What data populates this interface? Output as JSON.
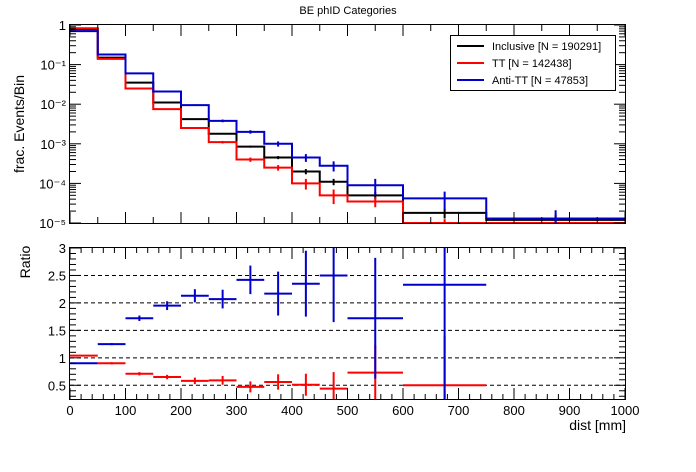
{
  "figure": {
    "title": "BE phID Categories",
    "colors": {
      "inclusive": "#000000",
      "tt": "#ff0000",
      "antitt": "#0000cc",
      "axis": "#000000"
    }
  },
  "chart_data": [
    {
      "type": "line",
      "title": "BE phID Categories",
      "xlabel": "",
      "ylabel": "frac. Events/Bin",
      "xlim": [
        0,
        1000
      ],
      "ylim": [
        1e-05,
        1
      ],
      "yscale": "log",
      "ytick_labels": [
        "10⁻⁵",
        "10⁻⁴",
        "10⁻³",
        "10⁻²",
        "10⁻¹",
        "1"
      ],
      "ytick_values": [
        1e-05,
        0.0001,
        0.001,
        0.01,
        0.1,
        1
      ],
      "legend_position": "top-right",
      "grid": false,
      "bin_edges": [
        0,
        50,
        100,
        150,
        200,
        250,
        300,
        350,
        400,
        450,
        500,
        600,
        750,
        1000
      ],
      "series": [
        {
          "name": "Inclusive [N = 190291]",
          "key": "inclusive",
          "color": "#000000",
          "values": [
            0.78,
            0.15,
            0.035,
            0.011,
            0.0042,
            0.0018,
            0.00085,
            0.00045,
            0.0002,
            0.00011,
            5e-05,
            1.8e-05,
            1.2e-05
          ],
          "errors": [
            0.002,
            0.0009,
            0.0004,
            0.0002,
            0.0001,
            7e-05,
            5e-05,
            4e-05,
            3e-05,
            2e-05,
            1e-05,
            5e-06,
            4e-06
          ]
        },
        {
          "name": "TT [N = 142438]",
          "key": "tt",
          "color": "#ff0000",
          "values": [
            0.83,
            0.14,
            0.025,
            0.0075,
            0.0025,
            0.0011,
            0.0004,
            0.00025,
            0.0001,
            5e-05,
            3.5e-05,
            8.5e-06,
            5e-06
          ],
          "errors": [
            0.002,
            0.001,
            0.0004,
            0.0002,
            0.0001,
            8e-05,
            5e-05,
            4e-05,
            3e-05,
            2e-05,
            1e-05,
            4e-06,
            3e-06
          ]
        },
        {
          "name": "Anti-TT [N = 47853]",
          "key": "antitt",
          "color": "#0000cc",
          "values": [
            0.7,
            0.18,
            0.06,
            0.021,
            0.0095,
            0.0038,
            0.002,
            0.001,
            0.00045,
            0.00028,
            9e-05,
            4.2e-05,
            1.3e-05
          ],
          "errors": [
            0.004,
            0.002,
            0.001,
            0.0006,
            0.0004,
            0.0003,
            0.0002,
            0.00015,
            0.0001,
            8e-05,
            4e-05,
            2e-05,
            8e-06
          ]
        }
      ]
    },
    {
      "type": "scatter",
      "xlabel": "dist [mm]",
      "ylabel": "Ratio",
      "xlim": [
        0,
        1000
      ],
      "ylim": [
        0.25,
        3
      ],
      "xticks": [
        0,
        100,
        200,
        300,
        400,
        500,
        600,
        700,
        800,
        900,
        1000
      ],
      "yticks": [
        0.5,
        1,
        1.5,
        2,
        2.5,
        3
      ],
      "ytick_labels": [
        "0.5",
        "1",
        "1.5",
        "2",
        "2.5",
        "3"
      ],
      "reference_lines": [
        0.5,
        1,
        1.5,
        2,
        2.5
      ],
      "grid": false,
      "bin_edges": [
        0,
        50,
        100,
        150,
        200,
        250,
        300,
        350,
        400,
        450,
        500,
        600,
        750,
        1000
      ],
      "series": [
        {
          "key": "tt",
          "color": "#ff0000",
          "values": [
            1.04,
            0.9,
            0.71,
            0.65,
            0.58,
            0.59,
            0.47,
            0.56,
            0.51,
            0.44,
            0.73,
            0.5,
            null
          ],
          "errors": [
            0.01,
            0.02,
            0.03,
            0.04,
            0.06,
            0.08,
            0.1,
            0.14,
            0.2,
            0.3,
            0.5,
            0.9,
            null
          ]
        },
        {
          "key": "antitt",
          "color": "#0000cc",
          "values": [
            0.9,
            1.25,
            1.72,
            1.95,
            2.13,
            2.07,
            2.42,
            2.17,
            2.35,
            2.5,
            1.72,
            2.33,
            null
          ],
          "errors": [
            0.01,
            0.02,
            0.05,
            0.08,
            0.12,
            0.17,
            0.26,
            0.4,
            0.6,
            0.85,
            1.1,
            2.3,
            null
          ]
        }
      ]
    }
  ]
}
